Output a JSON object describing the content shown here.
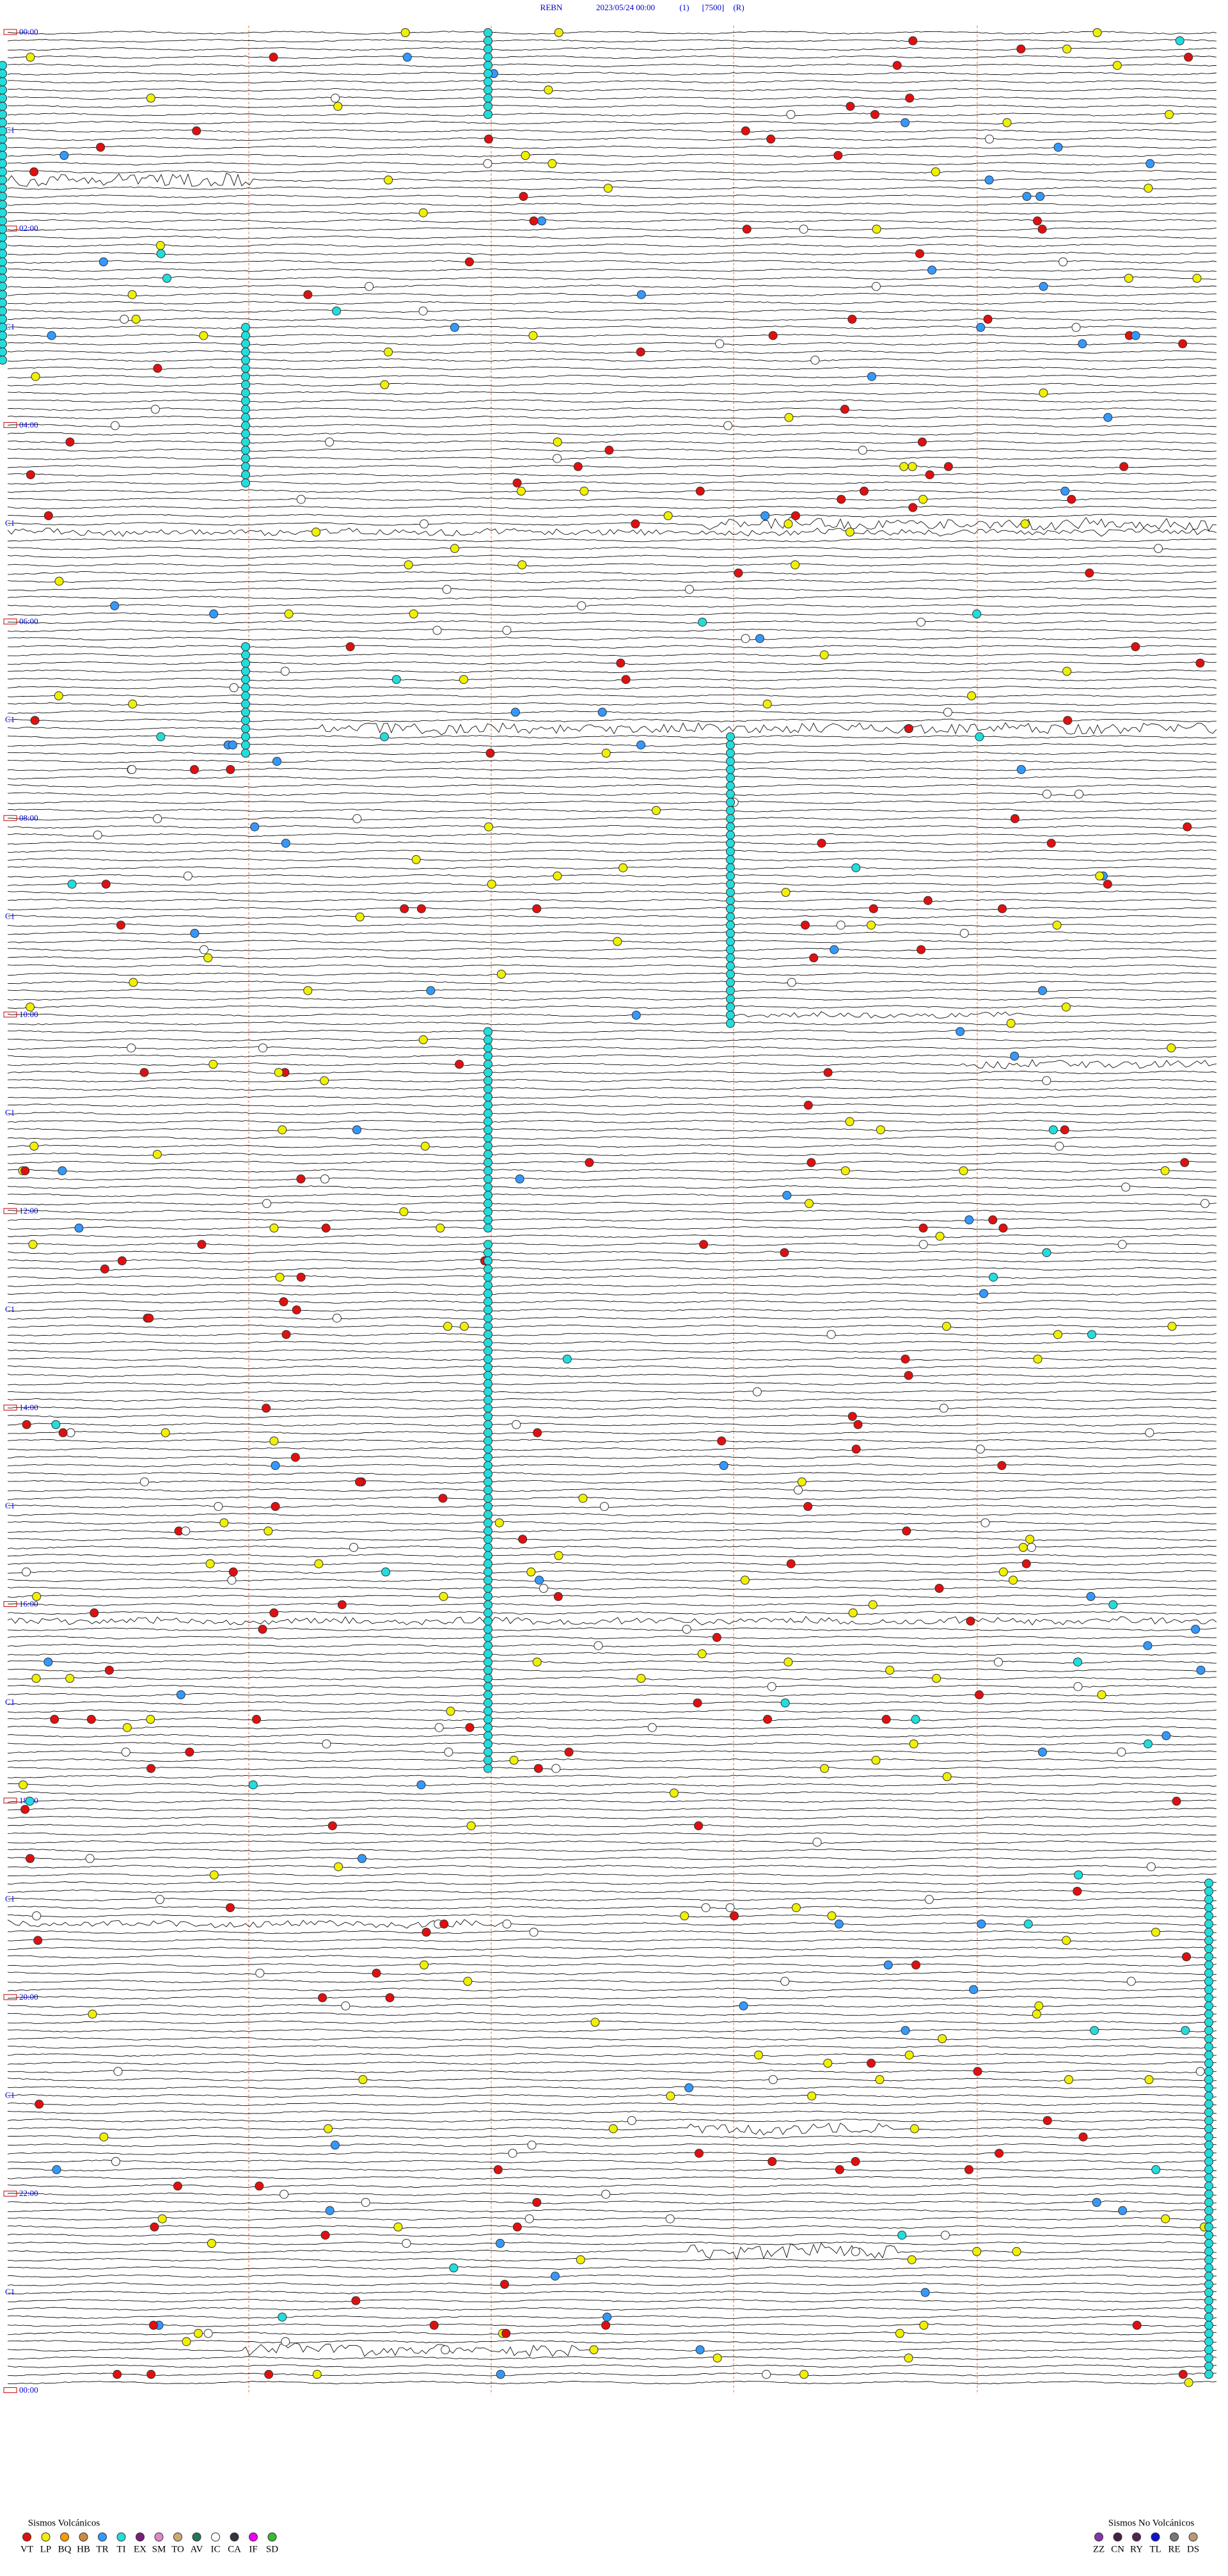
{
  "header": {
    "station": "REBN",
    "datetime": "2023/05/24 00:00",
    "channel": "(1)",
    "scale": "[7500]",
    "mode": "(R)"
  },
  "hour_labels": [
    "00:00",
    "02:00",
    "04:00",
    "06:00",
    "08:00",
    "10:00",
    "12:00",
    "14:00",
    "16:00",
    "18:00",
    "20:00",
    "22:00",
    "00:00"
  ],
  "channel_label": "C1",
  "legend_volcanic": {
    "title": "Sismos Volcánicos",
    "codes": [
      {
        "code": "VT",
        "color": "#e01010"
      },
      {
        "code": "LP",
        "color": "#f0f000"
      },
      {
        "code": "BQ",
        "color": "#ff9900"
      },
      {
        "code": "HB",
        "color": "#cc8844"
      },
      {
        "code": "TR",
        "color": "#3399ff"
      },
      {
        "code": "TI",
        "color": "#22dddd"
      },
      {
        "code": "EX",
        "color": "#772277"
      },
      {
        "code": "SM",
        "color": "#dd88cc"
      },
      {
        "code": "TO",
        "color": "#ccaa77"
      },
      {
        "code": "AV",
        "color": "#227755"
      },
      {
        "code": "IC",
        "color": "#ffffff"
      },
      {
        "code": "CA",
        "color": "#333344"
      },
      {
        "code": "IF",
        "color": "#ee00ee"
      },
      {
        "code": "SD",
        "color": "#33bb33"
      }
    ]
  },
  "legend_non_volcanic": {
    "title": "Sismos No Volcánicos",
    "codes": [
      {
        "code": "ZZ",
        "color": "#8833aa"
      },
      {
        "code": "CN",
        "color": "#442244"
      },
      {
        "code": "RY",
        "color": "#552255"
      },
      {
        "code": "TL",
        "color": "#1111cc"
      },
      {
        "code": "RE",
        "color": "#777777"
      },
      {
        "code": "DS",
        "color": "#bb9977"
      }
    ]
  }
}
